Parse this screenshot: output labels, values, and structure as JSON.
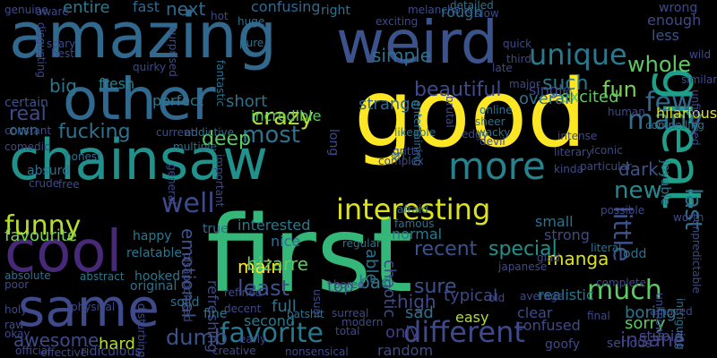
{
  "cloud": {
    "background": "#000000",
    "words": [
      {
        "text": "first",
        "color": "#35b779"
      },
      {
        "text": "good",
        "color": "#fde725"
      },
      {
        "text": "amazing",
        "color": "#31688e"
      },
      {
        "text": "weird",
        "color": "#3b528b"
      },
      {
        "text": "other",
        "color": "#31688e"
      },
      {
        "text": "chainsaw",
        "color": "#21918c"
      },
      {
        "text": "cool",
        "color": "#482878"
      },
      {
        "text": "same",
        "color": "#3e4a89"
      },
      {
        "text": "great",
        "color": "#1f9e89"
      },
      {
        "text": "more",
        "color": "#26828e"
      },
      {
        "text": "interesting",
        "color": "#dce319"
      },
      {
        "text": "funny",
        "color": "#b5de2b"
      },
      {
        "text": "different",
        "color": "#3e4a89"
      },
      {
        "text": "favorite",
        "color": "#2a788e"
      },
      {
        "text": "unique",
        "color": "#2a788e"
      },
      {
        "text": "whole",
        "color": "#5ec962"
      },
      {
        "text": "few",
        "color": "#31688e"
      },
      {
        "text": "many",
        "color": "#2c728e"
      },
      {
        "text": "crazy",
        "color": "#b5de2b"
      },
      {
        "text": "beautiful",
        "color": "#3e4a89"
      },
      {
        "text": "most",
        "color": "#2c728e"
      },
      {
        "text": "well",
        "color": "#3e4a89"
      },
      {
        "text": "much",
        "color": "#5ec962"
      },
      {
        "text": "new",
        "color": "#238a8d"
      },
      {
        "text": "little",
        "color": "#3b528b"
      },
      {
        "text": "last",
        "color": "#2c728e"
      },
      {
        "text": "fun",
        "color": "#7ad151"
      },
      {
        "text": "main",
        "color": "#fde725"
      },
      {
        "text": "least",
        "color": "#3b528b"
      },
      {
        "text": "dumb",
        "color": "#3b528b"
      },
      {
        "text": "awesome",
        "color": "#3e4a89"
      },
      {
        "text": "insane",
        "color": "#433e85"
      },
      {
        "text": "emotional",
        "color": "#3b528b"
      },
      {
        "text": "real",
        "color": "#3e4a89"
      },
      {
        "text": "sure",
        "color": "#3b528b"
      },
      {
        "text": "recent",
        "color": "#3b528b"
      },
      {
        "text": "special",
        "color": "#21918c"
      },
      {
        "text": "favourite",
        "color": "#7ad151"
      },
      {
        "text": "fucking",
        "color": "#2c728e"
      },
      {
        "text": "deep",
        "color": "#5ec962"
      },
      {
        "text": "bad",
        "color": "#2a788e"
      },
      {
        "text": "manga",
        "color": "#dce319"
      },
      {
        "text": "next",
        "color": "#31688e"
      },
      {
        "text": "entire",
        "color": "#2a788e"
      },
      {
        "text": "fast",
        "color": "#31688e"
      },
      {
        "text": "confusing",
        "color": "#31688e"
      },
      {
        "text": "simple",
        "color": "#2c728e"
      },
      {
        "text": "such",
        "color": "#2a788e"
      },
      {
        "text": "single",
        "color": "#3e4a89"
      },
      {
        "text": "enough",
        "color": "#3e4a89"
      },
      {
        "text": "less",
        "color": "#3b528b"
      },
      {
        "text": "excited",
        "color": "#5ec962"
      },
      {
        "text": "overall",
        "color": "#2c728e"
      },
      {
        "text": "hilarious",
        "color": "#dce319"
      },
      {
        "text": "big",
        "color": "#2a788e"
      },
      {
        "text": "fresh",
        "color": "#26828e"
      },
      {
        "text": "perfect",
        "color": "#2a788e"
      },
      {
        "text": "short",
        "color": "#2c728e"
      },
      {
        "text": "strange",
        "color": "#31688e"
      },
      {
        "text": "certain",
        "color": "#3b528b"
      },
      {
        "text": "incredible",
        "color": "#5ec962"
      },
      {
        "text": "own",
        "color": "#2a788e"
      },
      {
        "text": "dark",
        "color": "#3b528b"
      },
      {
        "text": "joyable",
        "color": "#2c728e"
      },
      {
        "text": "interested",
        "color": "#2a788e"
      },
      {
        "text": "nice",
        "color": "#2c728e"
      },
      {
        "text": "bizarre",
        "color": "#5ec962"
      },
      {
        "text": "able",
        "color": "#2c728e"
      },
      {
        "text": "chaotic",
        "color": "#3e4a89"
      },
      {
        "text": "top",
        "color": "#3e4a89"
      },
      {
        "text": "high",
        "color": "#3e4a89"
      },
      {
        "text": "typical",
        "color": "#3e4a89"
      },
      {
        "text": "boring",
        "color": "#2a788e"
      },
      {
        "text": "sorry",
        "color": "#5ec962"
      },
      {
        "text": "stupid",
        "color": "#3e4a89"
      },
      {
        "text": "serious",
        "color": "#3e4a89"
      },
      {
        "text": "realistic",
        "color": "#2a788e"
      },
      {
        "text": "clear",
        "color": "#3e4a89"
      },
      {
        "text": "confused",
        "color": "#3e4a89"
      },
      {
        "text": "easy",
        "color": "#b5de2b"
      },
      {
        "text": "sad",
        "color": "#2c728e"
      },
      {
        "text": "only",
        "color": "#433e85"
      },
      {
        "text": "random",
        "color": "#3e4a89"
      },
      {
        "text": "full",
        "color": "#2c728e"
      },
      {
        "text": "second",
        "color": "#2a788e"
      },
      {
        "text": "normal",
        "color": "#2a788e"
      },
      {
        "text": "hard",
        "color": "#b5de2b"
      },
      {
        "text": "refreshing",
        "color": "#3e4a89"
      },
      {
        "text": "relatable",
        "color": "#2a788e"
      },
      {
        "text": "happy",
        "color": "#2a788e"
      },
      {
        "text": "fine",
        "color": "#2a788e"
      },
      {
        "text": "true",
        "color": "#2c728e"
      },
      {
        "text": "original",
        "color": "#2c728e"
      },
      {
        "text": "hooked",
        "color": "#2a788e"
      },
      {
        "text": "abstract",
        "color": "#2a788e"
      },
      {
        "text": "absolute",
        "color": "#2c728e"
      },
      {
        "text": "holy",
        "color": "#3e4a89"
      },
      {
        "text": "solid",
        "color": "#2c728e"
      },
      {
        "text": "disturbing",
        "color": "#3e4a89"
      },
      {
        "text": "ridiculous",
        "color": "#3e4a89"
      },
      {
        "text": "effective",
        "color": "#3e4a89"
      },
      {
        "text": "creative",
        "color": "#3e4a89"
      },
      {
        "text": "nonsensical",
        "color": "#3e4a89"
      },
      {
        "text": "goofy",
        "color": "#3e4a89"
      },
      {
        "text": "intriguing",
        "color": "#2c728e"
      },
      {
        "text": "old",
        "color": "#3e4a89"
      },
      {
        "text": "average",
        "color": "#3e4a89"
      },
      {
        "text": "literal",
        "color": "#2c728e"
      },
      {
        "text": "strong",
        "color": "#3e4a89"
      },
      {
        "text": "odd",
        "color": "#2c728e"
      },
      {
        "text": "small",
        "color": "#2c728e"
      },
      {
        "text": "famous",
        "color": "#2c728e"
      },
      {
        "text": "afraid",
        "color": "#2c728e"
      },
      {
        "text": "regular",
        "color": "#2c728e"
      },
      {
        "text": "honest",
        "color": "#2c728e"
      },
      {
        "text": "comedic",
        "color": "#3e4a89"
      },
      {
        "text": "absurd",
        "color": "#2c728e"
      },
      {
        "text": "crude",
        "color": "#3e4a89"
      },
      {
        "text": "constant",
        "color": "#3e4a89"
      },
      {
        "text": "genuine",
        "color": "#3e4a89"
      },
      {
        "text": "aware",
        "color": "#3e4a89"
      },
      {
        "text": "disgusting",
        "color": "#3e4a89"
      },
      {
        "text": "surprised",
        "color": "#3e4a89"
      },
      {
        "text": "quirky",
        "color": "#3e4a89"
      },
      {
        "text": "fantastic",
        "color": "#2c728e"
      },
      {
        "text": "pure",
        "color": "#2c728e"
      },
      {
        "text": "huge",
        "color": "#2c728e"
      },
      {
        "text": "melancholic",
        "color": "#3e4a89"
      },
      {
        "text": "exciting",
        "color": "#3e4a89"
      },
      {
        "text": "rough",
        "color": "#2c728e"
      },
      {
        "text": "right",
        "color": "#2c728e"
      },
      {
        "text": "detailed",
        "color": "#2c728e"
      },
      {
        "text": "slow",
        "color": "#3e4a89"
      },
      {
        "text": "quick",
        "color": "#3e4a89"
      },
      {
        "text": "third",
        "color": "#3e4a89"
      },
      {
        "text": "late",
        "color": "#3e4a89"
      },
      {
        "text": "wild",
        "color": "#3e4a89"
      },
      {
        "text": "wrong",
        "color": "#3e4a89"
      },
      {
        "text": "similar",
        "color": "#3e4a89"
      },
      {
        "text": "unfinished",
        "color": "#3e4a89"
      },
      {
        "text": "compelling",
        "color": "#2c728e"
      },
      {
        "text": "human",
        "color": "#3e4a89"
      },
      {
        "text": "online",
        "color": "#2c728e"
      },
      {
        "text": "sheer",
        "color": "#2c728e"
      },
      {
        "text": "edgy",
        "color": "#3e4a89"
      },
      {
        "text": "wacky",
        "color": "#2c728e"
      },
      {
        "text": "devil",
        "color": "#3e4a89"
      },
      {
        "text": "brutal",
        "color": "#3e4a89"
      },
      {
        "text": "entertaining",
        "color": "#2c728e"
      },
      {
        "text": "likeable",
        "color": "#2c728e"
      },
      {
        "text": "gritty",
        "color": "#3e4a89"
      },
      {
        "text": "complex",
        "color": "#3e4a89"
      },
      {
        "text": "eri",
        "color": "#2c728e"
      },
      {
        "text": "literary",
        "color": "#3e4a89"
      },
      {
        "text": "intense",
        "color": "#3e4a89"
      },
      {
        "text": "kinda",
        "color": "#3e4a89"
      },
      {
        "text": "iconic",
        "color": "#3e4a89"
      },
      {
        "text": "particular",
        "color": "#3e4a89"
      },
      {
        "text": "worth",
        "color": "#3e4a89"
      },
      {
        "text": "unpredictable",
        "color": "#3e4a89"
      },
      {
        "text": "possible",
        "color": "#3e4a89"
      },
      {
        "text": "final",
        "color": "#3e4a89"
      },
      {
        "text": "unknown",
        "color": "#3e4a89"
      },
      {
        "text": "amazed",
        "color": "#3e4a89"
      },
      {
        "text": "complete",
        "color": "#3e4a89"
      },
      {
        "text": "glad",
        "color": "#3e4a89"
      },
      {
        "text": "japanese",
        "color": "#3e4a89"
      },
      {
        "text": "modern",
        "color": "#3e4a89"
      },
      {
        "text": "bored",
        "color": "#3e4a89"
      },
      {
        "text": "total",
        "color": "#3e4a89"
      },
      {
        "text": "surreal",
        "color": "#3e4a89"
      },
      {
        "text": "batshit",
        "color": "#2c728e"
      },
      {
        "text": "usual",
        "color": "#3e4a89"
      },
      {
        "text": "early",
        "color": "#3e4a89"
      },
      {
        "text": "refined",
        "color": "#3e4a89"
      },
      {
        "text": "decent",
        "color": "#3e4a89"
      },
      {
        "text": "physical",
        "color": "#3e4a89"
      },
      {
        "text": "official",
        "color": "#3e4a89"
      },
      {
        "text": "multiple",
        "color": "#2c728e"
      },
      {
        "text": "addictive",
        "color": "#2c728e"
      },
      {
        "text": "current",
        "color": "#3e4a89"
      },
      {
        "text": "important",
        "color": "#3e4a89"
      },
      {
        "text": "general",
        "color": "#3e4a89"
      },
      {
        "text": "disappointed",
        "color": "#3e4a89"
      },
      {
        "text": "free",
        "color": "#3e4a89"
      },
      {
        "text": "raw",
        "color": "#3e4a89"
      },
      {
        "text": "okay",
        "color": "#3e4a89"
      },
      {
        "text": "poor",
        "color": "#3e4a89"
      },
      {
        "text": "major",
        "color": "#3e4a89"
      },
      {
        "text": "hot",
        "color": "#3e4a89"
      },
      {
        "text": "scary",
        "color": "#3e4a89"
      },
      {
        "text": "best",
        "color": "#3e4a89"
      },
      {
        "text": "long",
        "color": "#3e4a89"
      }
    ]
  }
}
